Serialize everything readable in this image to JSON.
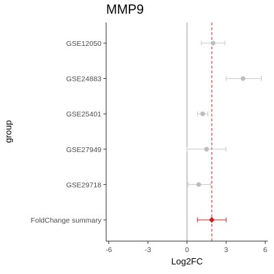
{
  "chart_data": {
    "type": "forest",
    "title": "MMP9",
    "xlabel": "Log2FC",
    "ylabel": "group",
    "xlim": [
      -6.2,
      6.2
    ],
    "xticks": [
      -6,
      -3,
      0,
      3,
      6
    ],
    "reference_line": 0,
    "summary_line": 1.9,
    "categories": [
      "GSE12050",
      "GSE24883",
      "GSE25401",
      "GSE27949",
      "GSE29718",
      "FoldChange summary"
    ],
    "points": [
      {
        "group": "GSE12050",
        "estimate": 2.0,
        "lower": 1.1,
        "upper": 2.9
      },
      {
        "group": "GSE24883",
        "estimate": 4.3,
        "lower": 3.0,
        "upper": 5.7
      },
      {
        "group": "GSE25401",
        "estimate": 1.2,
        "lower": 0.8,
        "upper": 1.6
      },
      {
        "group": "GSE27949",
        "estimate": 1.5,
        "lower": 0.0,
        "upper": 3.0
      },
      {
        "group": "GSE29718",
        "estimate": 0.9,
        "lower": 0.1,
        "upper": 1.8
      },
      {
        "group": "FoldChange summary",
        "estimate": 1.9,
        "lower": 0.8,
        "upper": 3.0
      }
    ],
    "colors": {
      "study_point": "#bdbdbd",
      "study_error": "#c8c8c8",
      "summary": "#cc1f1f",
      "summary_line": "#cc1f1f",
      "reference_line": "#9a9a9a",
      "axis": "#333333",
      "tick_text": "#4d4d4d"
    },
    "grid": false
  }
}
